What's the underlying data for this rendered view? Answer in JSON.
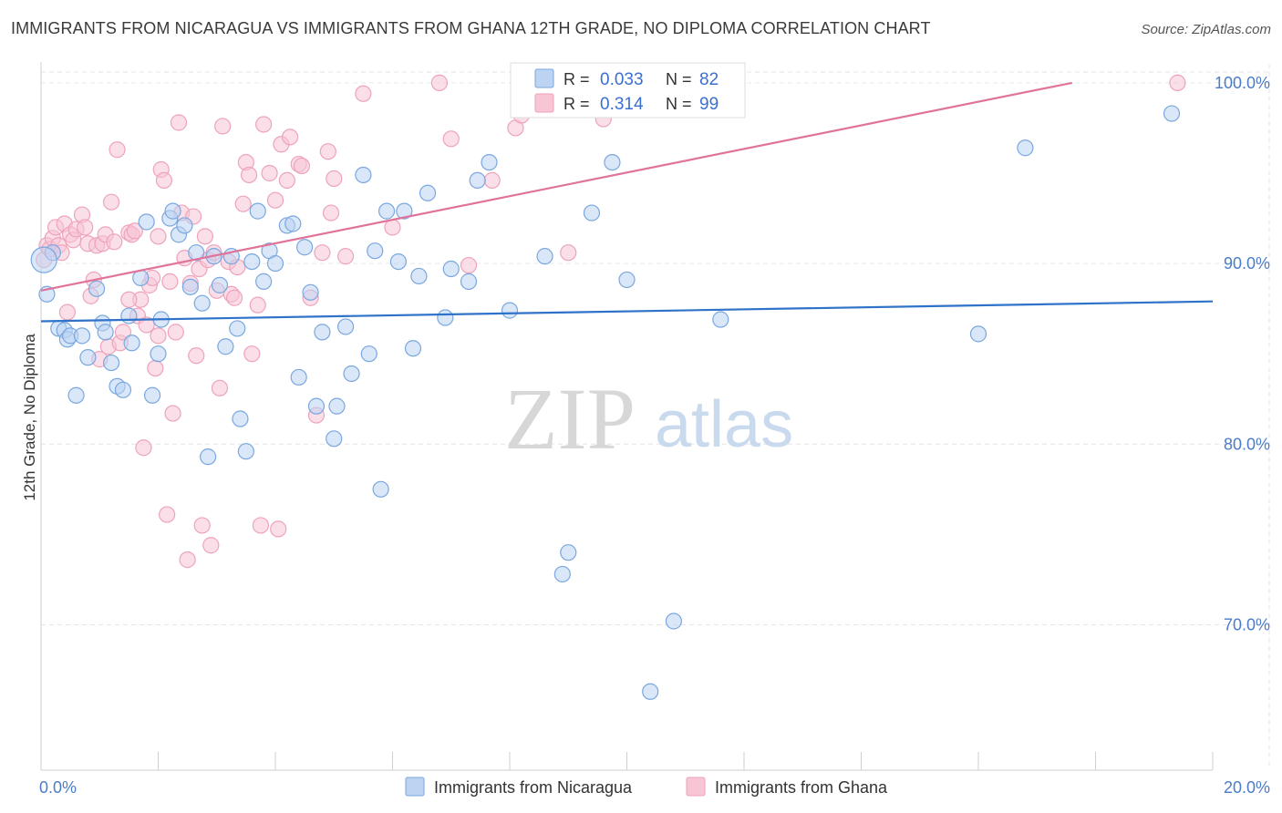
{
  "header": {
    "title": "IMMIGRANTS FROM NICARAGUA VS IMMIGRANTS FROM GHANA 12TH GRADE, NO DIPLOMA CORRELATION CHART",
    "source": "Source: ZipAtlas.com"
  },
  "watermark": {
    "zip": "ZIP",
    "atlas": "atlas"
  },
  "colors": {
    "nicaragua_fill": "#bcd3f2",
    "nicaragua_stroke": "#7aa7e0",
    "nicaragua_line": "#2f72c9",
    "ghana_fill": "#f8c5d5",
    "ghana_stroke": "#eea3bb",
    "ghana_line": "#e0739b",
    "grid": "#e6e6e6",
    "tick_text": "#4a7cc9"
  },
  "legend_top": {
    "rows": [
      {
        "r_label": "R = ",
        "r_value": "0.033",
        "n_label": "N = ",
        "n_value": "82"
      },
      {
        "r_label": "R = ",
        "r_value": "0.314",
        "n_label": "N = ",
        "n_value": "99"
      }
    ]
  },
  "legend_bottom": [
    "Immigrants from Nicaragua",
    "Immigrants from Ghana"
  ],
  "chart_data": {
    "type": "scatter",
    "title": "IMMIGRANTS FROM NICARAGUA VS IMMIGRANTS FROM GHANA 12TH GRADE, NO DIPLOMA CORRELATION CHART",
    "xlabel": "",
    "ylabel": "12th Grade, No Diploma",
    "xlim": [
      0,
      20
    ],
    "ylim": [
      62,
      100.6
    ],
    "x_tick_labels": [
      "0.0%",
      "20.0%"
    ],
    "y_ticks": [
      70,
      80,
      90,
      100
    ],
    "y_tick_labels": [
      "70.0%",
      "80.0%",
      "90.0%",
      "100.0%"
    ],
    "grid": true,
    "legend_position": "top-center",
    "series": [
      {
        "name": "Immigrants from Nicaragua",
        "R": 0.033,
        "N": 82,
        "trend": {
          "x": [
            0,
            20
          ],
          "y": [
            86.8,
            87.9
          ]
        },
        "points": [
          [
            0.1,
            88.3
          ],
          [
            0.2,
            90.6
          ],
          [
            0.3,
            86.4
          ],
          [
            0.4,
            86.3
          ],
          [
            0.45,
            85.8
          ],
          [
            0.5,
            86.0
          ],
          [
            0.6,
            82.7
          ],
          [
            0.7,
            86.0
          ],
          [
            0.8,
            84.8
          ],
          [
            0.95,
            88.6
          ],
          [
            1.05,
            86.7
          ],
          [
            1.1,
            86.2
          ],
          [
            1.2,
            84.5
          ],
          [
            1.3,
            83.2
          ],
          [
            1.4,
            83.0
          ],
          [
            1.5,
            87.1
          ],
          [
            1.55,
            85.6
          ],
          [
            1.7,
            89.2
          ],
          [
            1.8,
            92.3
          ],
          [
            1.9,
            82.7
          ],
          [
            2.0,
            85.0
          ],
          [
            2.05,
            86.9
          ],
          [
            2.2,
            92.5
          ],
          [
            2.25,
            92.9
          ],
          [
            2.35,
            91.6
          ],
          [
            2.45,
            92.1
          ],
          [
            2.55,
            88.7
          ],
          [
            2.65,
            90.6
          ],
          [
            2.75,
            87.8
          ],
          [
            2.85,
            79.3
          ],
          [
            2.95,
            90.4
          ],
          [
            3.05,
            88.8
          ],
          [
            3.15,
            85.4
          ],
          [
            3.25,
            90.4
          ],
          [
            3.35,
            86.4
          ],
          [
            3.4,
            81.4
          ],
          [
            3.5,
            79.6
          ],
          [
            3.6,
            90.1
          ],
          [
            3.7,
            92.9
          ],
          [
            3.8,
            89.0
          ],
          [
            3.9,
            90.7
          ],
          [
            4.0,
            90.0
          ],
          [
            4.2,
            92.1
          ],
          [
            4.3,
            92.2
          ],
          [
            4.4,
            83.7
          ],
          [
            4.5,
            90.9
          ],
          [
            4.6,
            88.4
          ],
          [
            4.7,
            82.1
          ],
          [
            4.8,
            86.2
          ],
          [
            5.0,
            80.3
          ],
          [
            5.05,
            82.1
          ],
          [
            5.2,
            86.5
          ],
          [
            5.3,
            83.9
          ],
          [
            5.5,
            94.9
          ],
          [
            5.6,
            85.0
          ],
          [
            5.7,
            90.7
          ],
          [
            5.8,
            77.5
          ],
          [
            5.9,
            92.9
          ],
          [
            6.1,
            90.1
          ],
          [
            6.2,
            92.9
          ],
          [
            6.35,
            85.3
          ],
          [
            6.45,
            89.3
          ],
          [
            6.6,
            93.9
          ],
          [
            6.9,
            87.0
          ],
          [
            7.0,
            89.7
          ],
          [
            7.3,
            89.0
          ],
          [
            7.45,
            94.6
          ],
          [
            7.65,
            95.6
          ],
          [
            8.0,
            87.4
          ],
          [
            8.6,
            90.4
          ],
          [
            8.9,
            72.8
          ],
          [
            9.0,
            74.0
          ],
          [
            9.4,
            92.8
          ],
          [
            9.75,
            95.6
          ],
          [
            10.0,
            89.1
          ],
          [
            10.4,
            66.3
          ],
          [
            10.8,
            70.2
          ],
          [
            11.6,
            86.9
          ],
          [
            16.0,
            86.1
          ],
          [
            16.8,
            96.4
          ],
          [
            19.3,
            98.3
          ],
          [
            0.05,
            90.2
          ]
        ]
      },
      {
        "name": "Immigrants from Ghana",
        "R": 0.314,
        "N": 99,
        "trend": {
          "x": [
            0,
            17.6
          ],
          "y": [
            88.5,
            100.0
          ]
        },
        "points": [
          [
            0.05,
            90.2
          ],
          [
            0.1,
            91.0
          ],
          [
            0.15,
            90.8
          ],
          [
            0.2,
            91.4
          ],
          [
            0.25,
            92.0
          ],
          [
            0.3,
            91.0
          ],
          [
            0.35,
            90.6
          ],
          [
            0.4,
            92.2
          ],
          [
            0.45,
            87.3
          ],
          [
            0.5,
            91.6
          ],
          [
            0.55,
            91.3
          ],
          [
            0.6,
            91.9
          ],
          [
            0.7,
            92.7
          ],
          [
            0.75,
            92.0
          ],
          [
            0.8,
            91.1
          ],
          [
            0.85,
            88.2
          ],
          [
            0.9,
            89.1
          ],
          [
            0.95,
            91.0
          ],
          [
            1.0,
            84.7
          ],
          [
            1.05,
            91.1
          ],
          [
            1.1,
            91.6
          ],
          [
            1.15,
            85.4
          ],
          [
            1.2,
            93.4
          ],
          [
            1.25,
            91.2
          ],
          [
            1.3,
            96.3
          ],
          [
            1.35,
            85.6
          ],
          [
            1.4,
            86.2
          ],
          [
            1.5,
            91.7
          ],
          [
            1.55,
            91.6
          ],
          [
            1.6,
            91.8
          ],
          [
            1.65,
            87.1
          ],
          [
            1.7,
            88.0
          ],
          [
            1.75,
            79.8
          ],
          [
            1.8,
            86.6
          ],
          [
            1.85,
            88.8
          ],
          [
            1.9,
            89.2
          ],
          [
            1.95,
            84.2
          ],
          [
            2.0,
            91.5
          ],
          [
            2.05,
            95.2
          ],
          [
            2.1,
            94.6
          ],
          [
            2.15,
            76.1
          ],
          [
            2.2,
            89.0
          ],
          [
            2.25,
            81.7
          ],
          [
            2.3,
            86.2
          ],
          [
            2.35,
            97.8
          ],
          [
            2.4,
            92.8
          ],
          [
            2.45,
            90.3
          ],
          [
            2.5,
            73.6
          ],
          [
            2.55,
            88.9
          ],
          [
            2.6,
            92.6
          ],
          [
            2.65,
            84.9
          ],
          [
            2.7,
            89.7
          ],
          [
            2.75,
            75.5
          ],
          [
            2.8,
            91.5
          ],
          [
            2.85,
            90.2
          ],
          [
            2.9,
            74.4
          ],
          [
            2.95,
            90.6
          ],
          [
            3.05,
            83.1
          ],
          [
            3.1,
            97.6
          ],
          [
            3.2,
            90.1
          ],
          [
            3.25,
            88.3
          ],
          [
            3.3,
            88.1
          ],
          [
            3.35,
            89.8
          ],
          [
            3.45,
            93.3
          ],
          [
            3.5,
            95.6
          ],
          [
            3.55,
            94.9
          ],
          [
            3.6,
            85.0
          ],
          [
            3.7,
            87.7
          ],
          [
            3.75,
            75.5
          ],
          [
            3.8,
            97.7
          ],
          [
            3.9,
            95.0
          ],
          [
            4.0,
            93.5
          ],
          [
            4.05,
            75.3
          ],
          [
            4.1,
            96.6
          ],
          [
            4.2,
            94.6
          ],
          [
            4.25,
            97.0
          ],
          [
            4.4,
            95.5
          ],
          [
            4.45,
            95.4
          ],
          [
            4.6,
            88.1
          ],
          [
            4.7,
            81.6
          ],
          [
            4.8,
            90.6
          ],
          [
            4.9,
            96.2
          ],
          [
            4.95,
            92.8
          ],
          [
            5.0,
            94.7
          ],
          [
            5.5,
            99.4
          ],
          [
            6.0,
            92.0
          ],
          [
            6.8,
            100.0
          ],
          [
            7.0,
            96.9
          ],
          [
            7.3,
            89.9
          ],
          [
            7.7,
            94.6
          ],
          [
            8.1,
            97.5
          ],
          [
            8.2,
            98.2
          ],
          [
            9.0,
            90.6
          ],
          [
            9.6,
            98.0
          ],
          [
            19.4,
            100.0
          ],
          [
            1.5,
            88.0
          ],
          [
            2.0,
            86.0
          ],
          [
            3.0,
            88.5
          ],
          [
            5.2,
            90.4
          ]
        ]
      }
    ]
  }
}
